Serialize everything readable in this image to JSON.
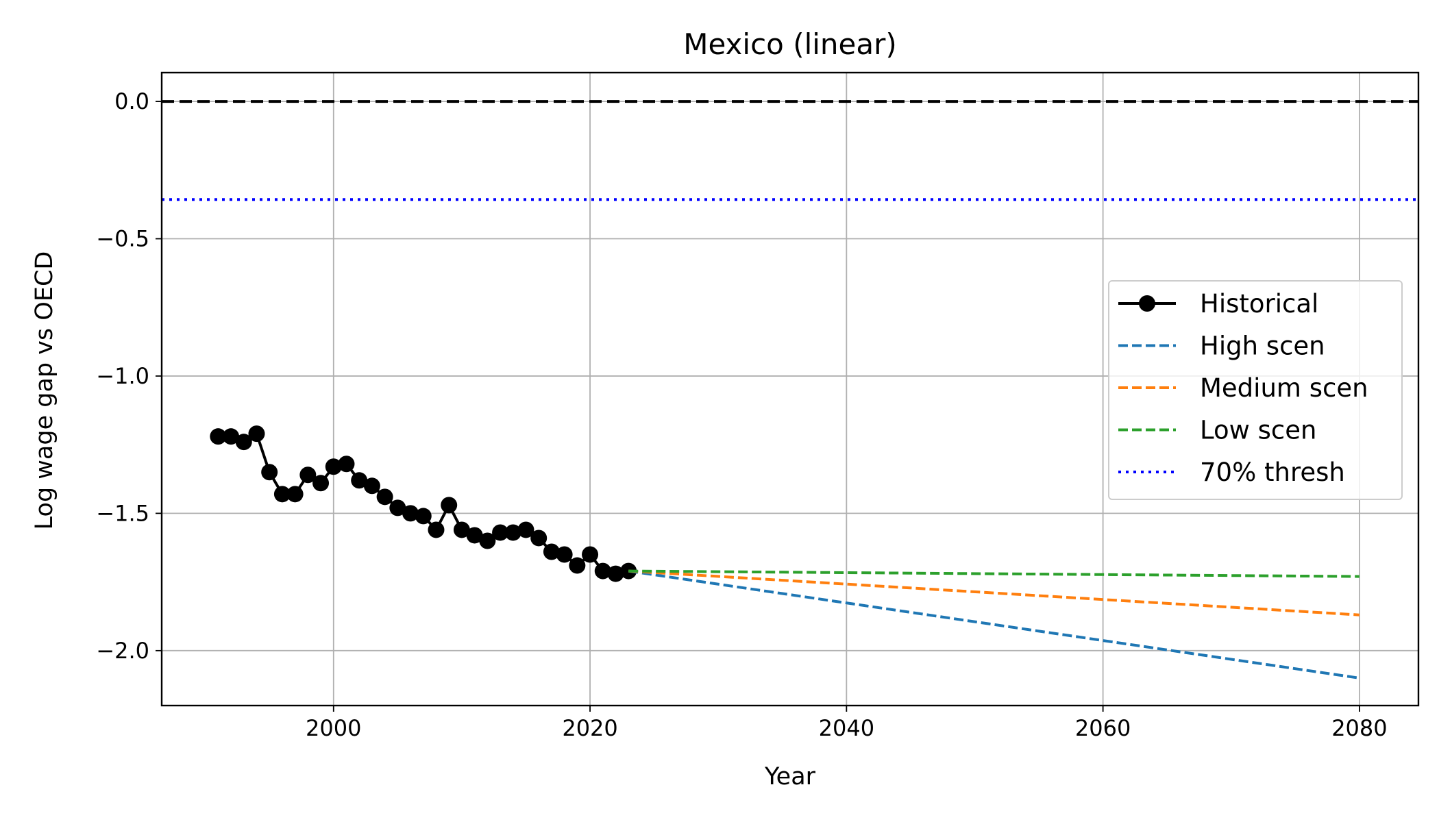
{
  "chart_data": {
    "type": "line",
    "title": "Mexico (linear)",
    "xlabel": "Year",
    "ylabel": "Log wage gap vs OECD",
    "xlim": [
      1986.6,
      2084.6
    ],
    "ylim": [
      -2.2,
      0.105
    ],
    "x_ticks": [
      2000,
      2020,
      2040,
      2060,
      2080
    ],
    "x_tick_labels": [
      "2000",
      "2020",
      "2040",
      "2060",
      "2080"
    ],
    "y_ticks": [
      0.0,
      -0.5,
      -1.0,
      -1.5,
      -2.0
    ],
    "y_tick_labels": [
      "0.0",
      "−0.5",
      "−1.0",
      "−1.5",
      "−2.0"
    ],
    "grid": true,
    "legend_position": "center-right",
    "series": [
      {
        "name": "Historical",
        "style": "solid-marker",
        "color": "#000000",
        "x": [
          1991,
          1992,
          1993,
          1994,
          1995,
          1996,
          1997,
          1998,
          1999,
          2000,
          2001,
          2002,
          2003,
          2004,
          2005,
          2006,
          2007,
          2008,
          2009,
          2010,
          2011,
          2012,
          2013,
          2014,
          2015,
          2016,
          2017,
          2018,
          2019,
          2020,
          2021,
          2022,
          2023
        ],
        "y": [
          -1.22,
          -1.22,
          -1.24,
          -1.21,
          -1.35,
          -1.43,
          -1.43,
          -1.36,
          -1.39,
          -1.33,
          -1.32,
          -1.38,
          -1.4,
          -1.44,
          -1.48,
          -1.5,
          -1.51,
          -1.56,
          -1.47,
          -1.56,
          -1.58,
          -1.6,
          -1.57,
          -1.57,
          -1.56,
          -1.59,
          -1.64,
          -1.65,
          -1.69,
          -1.65,
          -1.71,
          -1.72,
          -1.71
        ]
      },
      {
        "name": "High scen",
        "style": "dashed",
        "color": "#1f77b4",
        "x": [
          2023,
          2080
        ],
        "y": [
          -1.71,
          -2.1
        ]
      },
      {
        "name": "Medium scen",
        "style": "dashed",
        "color": "#ff7f0e",
        "x": [
          2023,
          2080
        ],
        "y": [
          -1.71,
          -1.87
        ]
      },
      {
        "name": "Low scen",
        "style": "dashed",
        "color": "#2ca02c",
        "x": [
          2023,
          2080
        ],
        "y": [
          -1.71,
          -1.73
        ]
      },
      {
        "name": "70% thresh",
        "style": "dotted-hline",
        "color": "#0000ff",
        "y_value": -0.357
      }
    ],
    "reference_line": {
      "y_value": 0.0,
      "style": "dashed-hline",
      "color": "#000000"
    }
  }
}
